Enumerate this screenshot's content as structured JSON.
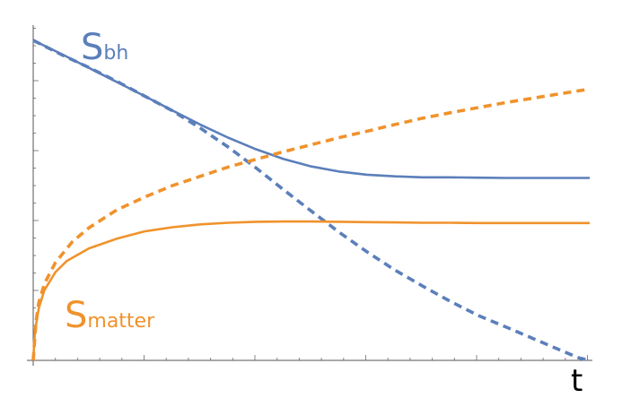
{
  "chart_data": {
    "type": "line",
    "title": "",
    "xlabel": "t",
    "ylabel": "",
    "xlim": [
      0,
      1
    ],
    "ylim": [
      0,
      1
    ],
    "grid": false,
    "colors": {
      "blue": "#5b7fba",
      "orange": "#f0922b",
      "axis": "#555555"
    },
    "annotations": [
      {
        "main": "S",
        "sub": "bh",
        "color": "#5b7fba"
      },
      {
        "main": "S",
        "sub": "matter",
        "color": "#f0922b"
      }
    ],
    "series": [
      {
        "color": "#5b7fba",
        "dash": false,
        "x": [
          0,
          0.05,
          0.1,
          0.15,
          0.2,
          0.25,
          0.3,
          0.35,
          0.4,
          0.45,
          0.5,
          0.55,
          0.6,
          0.65,
          0.7,
          0.75,
          0.8,
          0.85,
          0.9,
          0.95,
          1.0
        ],
        "y": [
          1.0,
          0.958,
          0.914,
          0.87,
          0.826,
          0.781,
          0.737,
          0.696,
          0.66,
          0.629,
          0.606,
          0.59,
          0.58,
          0.575,
          0.572,
          0.572,
          0.571,
          0.57,
          0.57,
          0.57,
          0.57
        ]
      },
      {
        "color": "#5b7fba",
        "dash": true,
        "x": [
          0,
          0.05,
          0.1,
          0.15,
          0.2,
          0.25,
          0.3,
          0.35,
          0.4,
          0.45,
          0.5,
          0.55,
          0.6,
          0.65,
          0.7,
          0.75,
          0.8,
          0.85,
          0.9,
          0.95,
          0.98,
          1.0
        ],
        "y": [
          1.0,
          0.956,
          0.915,
          0.872,
          0.826,
          0.78,
          0.726,
          0.667,
          0.602,
          0.533,
          0.466,
          0.4,
          0.339,
          0.282,
          0.232,
          0.184,
          0.14,
          0.104,
          0.067,
          0.03,
          0.008,
          0.0
        ]
      },
      {
        "color": "#f0922b",
        "dash": false,
        "x": [
          0,
          0.003,
          0.01,
          0.02,
          0.04,
          0.06,
          0.1,
          0.15,
          0.2,
          0.25,
          0.3,
          0.35,
          0.4,
          0.45,
          0.5,
          0.55,
          0.6,
          0.65,
          0.7,
          0.75,
          0.8,
          0.85,
          0.9,
          0.95,
          1.0
        ],
        "y": [
          0.0,
          0.09,
          0.163,
          0.219,
          0.276,
          0.31,
          0.35,
          0.38,
          0.403,
          0.416,
          0.425,
          0.43,
          0.433,
          0.434,
          0.434,
          0.433,
          0.432,
          0.431,
          0.43,
          0.43,
          0.429,
          0.429,
          0.429,
          0.429,
          0.429
        ]
      },
      {
        "color": "#f0922b",
        "dash": true,
        "x": [
          0,
          0.005,
          0.01,
          0.02,
          0.04,
          0.07,
          0.1,
          0.15,
          0.2,
          0.25,
          0.3,
          0.35,
          0.4,
          0.45,
          0.5,
          0.55,
          0.6,
          0.65,
          0.7,
          0.75,
          0.8,
          0.85,
          0.9,
          0.95,
          1.0
        ],
        "y": [
          0.0,
          0.12,
          0.18,
          0.239,
          0.306,
          0.37,
          0.414,
          0.47,
          0.51,
          0.546,
          0.575,
          0.604,
          0.628,
          0.652,
          0.674,
          0.696,
          0.716,
          0.737,
          0.757,
          0.774,
          0.79,
          0.806,
          0.82,
          0.834,
          0.848
        ]
      }
    ]
  }
}
